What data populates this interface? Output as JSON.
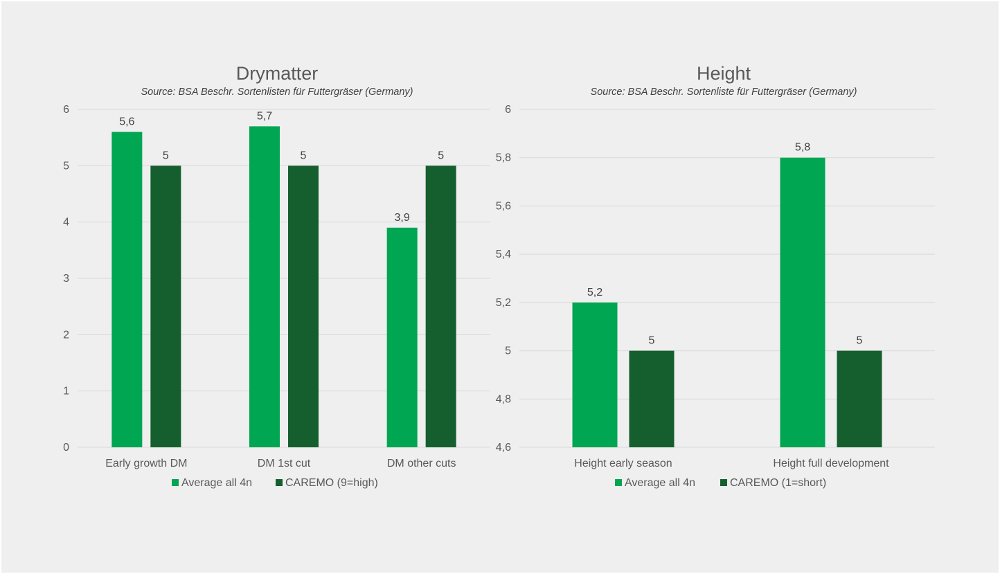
{
  "colors": {
    "average": "#00a651",
    "caremo": "#155f2e",
    "grid": "#d9d9d9",
    "background": "#efefef"
  },
  "chart_data": [
    {
      "type": "bar",
      "title": "Drymatter",
      "subtitle": "Source: BSA Beschr. Sortenlisten für Futtergräser (Germany)",
      "categories": [
        "Early growth DM",
        "DM 1st cut",
        "DM other cuts"
      ],
      "series": [
        {
          "name": "Average all 4n",
          "values": [
            5.6,
            5.7,
            3.9
          ],
          "labels": [
            "5,6",
            "5,7",
            "3,9"
          ],
          "color": "#00a651"
        },
        {
          "name": "CAREMO (9=high)",
          "values": [
            5,
            5,
            5
          ],
          "labels": [
            "5",
            "5",
            "5"
          ],
          "color": "#155f2e"
        }
      ],
      "ylim": [
        0,
        6
      ],
      "yticks": [
        0,
        1,
        2,
        3,
        4,
        5,
        6
      ],
      "ytick_labels": [
        "0",
        "1",
        "2",
        "3",
        "4",
        "5",
        "6"
      ],
      "grid": true,
      "legend": "bottom"
    },
    {
      "type": "bar",
      "title": "Height",
      "subtitle": "Source: BSA Beschr. Sortenliste für Futtergräser (Germany)",
      "categories": [
        "Height early season",
        "Height full development"
      ],
      "series": [
        {
          "name": "Average all 4n",
          "values": [
            5.2,
            5.8
          ],
          "labels": [
            "5,2",
            "5,8"
          ],
          "color": "#00a651"
        },
        {
          "name": "CAREMO (1=short)",
          "values": [
            5,
            5
          ],
          "labels": [
            "5",
            "5"
          ],
          "color": "#155f2e"
        }
      ],
      "ylim": [
        4.6,
        6
      ],
      "yticks": [
        4.6,
        4.8,
        5.0,
        5.2,
        5.4,
        5.6,
        5.8,
        6.0
      ],
      "ytick_labels": [
        "4,6",
        "4,8",
        "5",
        "5,2",
        "5,4",
        "5,6",
        "5,8",
        "6"
      ],
      "grid": true,
      "legend": "bottom"
    }
  ]
}
